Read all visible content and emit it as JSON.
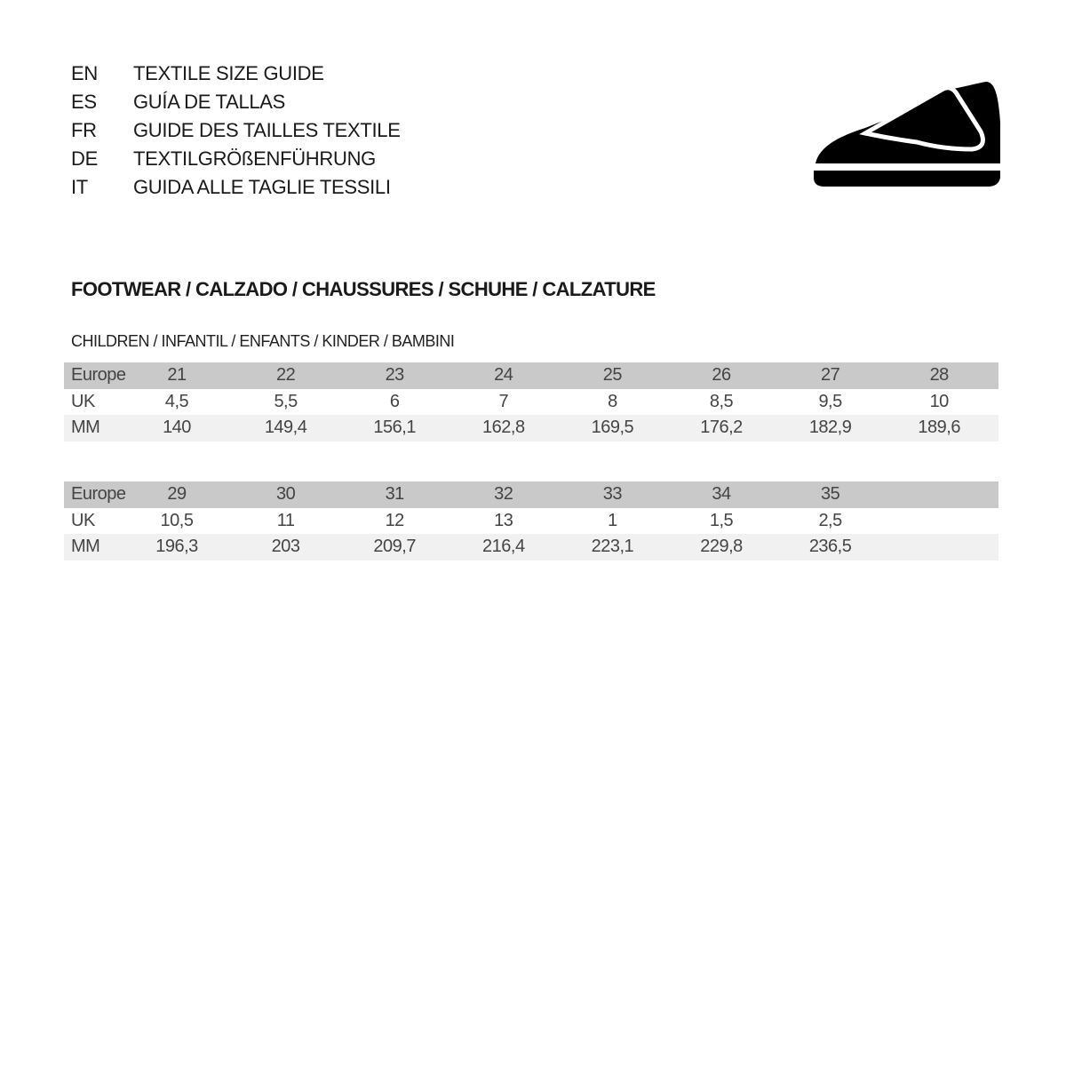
{
  "header": {
    "languages": [
      {
        "code": "EN",
        "text": "TEXTILE SIZE GUIDE"
      },
      {
        "code": "ES",
        "text": "GUÍA DE TALLAS"
      },
      {
        "code": "FR",
        "text": "GUIDE DES TAILLES TEXTILE"
      },
      {
        "code": "DE",
        "text": "TEXTILGRÖßENFÜHRUNG"
      },
      {
        "code": "IT",
        "text": "GUIDA ALLE TAGLIE TESSILI"
      }
    ],
    "icon": "children-velcro-shoe-icon"
  },
  "section": {
    "title": "FOOTWEAR / CALZADO / CHAUSSURES / SCHUHE / CALZATURE",
    "subtitle": "CHILDREN / INFANTIL / ENFANTS / KINDER / BAMBINI"
  },
  "colors": {
    "header_row": "#c9c9c9",
    "alt_row": "#f1f1f1"
  },
  "tables": [
    {
      "rows": [
        {
          "label": "Europe",
          "values": [
            "21",
            "22",
            "23",
            "24",
            "25",
            "26",
            "27",
            "28"
          ]
        },
        {
          "label": "UK",
          "values": [
            "4,5",
            "5,5",
            "6",
            "7",
            "8",
            "8,5",
            "9,5",
            "10"
          ]
        },
        {
          "label": "MM",
          "values": [
            "140",
            "149,4",
            "156,1",
            "162,8",
            "169,5",
            "176,2",
            "182,9",
            "189,6"
          ]
        }
      ]
    },
    {
      "rows": [
        {
          "label": "Europe",
          "values": [
            "29",
            "30",
            "31",
            "32",
            "33",
            "34",
            "35"
          ]
        },
        {
          "label": "UK",
          "values": [
            "10,5",
            "11",
            "12",
            "13",
            "1",
            "1,5",
            "2,5"
          ]
        },
        {
          "label": "MM",
          "values": [
            "196,3",
            "203",
            "209,7",
            "216,4",
            "223,1",
            "229,8",
            "236,5"
          ]
        }
      ]
    }
  ]
}
